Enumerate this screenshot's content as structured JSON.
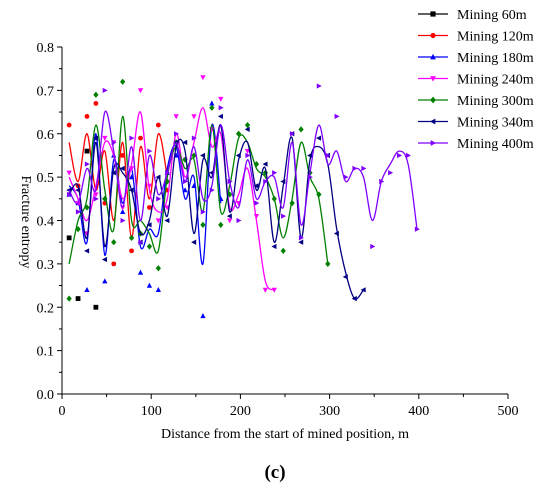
{
  "chart_data": {
    "type": "line",
    "title": "",
    "xlabel": "Distance from the start of mined position, m",
    "ylabel": "Fracture entropy",
    "xlim": [
      0,
      500
    ],
    "ylim": [
      0.0,
      0.8
    ],
    "x_ticks": [
      "0",
      "100",
      "200",
      "300",
      "400",
      "500"
    ],
    "y_ticks": [
      "0.0",
      "0.1",
      "0.2",
      "0.3",
      "0.4",
      "0.5",
      "0.6",
      "0.7",
      "0.8"
    ],
    "grid": false,
    "legend_position": "top-right",
    "series": [
      {
        "name": "Mining 60m",
        "color": "#000000",
        "marker": "square",
        "x": [
          8,
          18,
          28,
          38
        ],
        "y": [
          0.36,
          0.22,
          0.56,
          0.2
        ],
        "line_x": [],
        "line_y": []
      },
      {
        "name": "Mining 120m",
        "color": "#ff0000",
        "marker": "circle",
        "x": [
          8,
          18,
          28,
          38,
          48,
          58,
          68,
          78,
          88,
          98,
          108,
          118
        ],
        "y": [
          0.62,
          0.48,
          0.64,
          0.67,
          0.44,
          0.3,
          0.55,
          0.33,
          0.59,
          0.43,
          0.62,
          0.47
        ],
        "line_x": [
          8,
          18,
          28,
          38,
          48,
          58,
          68,
          78,
          88,
          98,
          108,
          118
        ],
        "line_y": [
          0.58,
          0.49,
          0.6,
          0.47,
          0.56,
          0.4,
          0.58,
          0.36,
          0.57,
          0.45,
          0.6,
          0.5
        ]
      },
      {
        "name": "Mining 180m",
        "color": "#0000ff",
        "marker": "triangle-up",
        "x": [
          8,
          18,
          28,
          38,
          48,
          58,
          68,
          78,
          88,
          98,
          108,
          118,
          128,
          138,
          148,
          158,
          168,
          178
        ],
        "y": [
          0.46,
          0.44,
          0.24,
          0.59,
          0.26,
          0.55,
          0.42,
          0.5,
          0.28,
          0.25,
          0.24,
          0.51,
          0.55,
          0.47,
          0.48,
          0.18,
          0.67,
          0.45
        ],
        "line_x": [
          8,
          18,
          28,
          38,
          48,
          58,
          68,
          78,
          88,
          98,
          108,
          118,
          128,
          138,
          148,
          158,
          168,
          178
        ],
        "line_y": [
          0.48,
          0.45,
          0.35,
          0.6,
          0.32,
          0.54,
          0.44,
          0.52,
          0.34,
          0.38,
          0.37,
          0.52,
          0.57,
          0.45,
          0.5,
          0.3,
          0.62,
          0.44
        ]
      },
      {
        "name": "Mining 240m",
        "color": "#ff00ff",
        "marker": "triangle-down",
        "x": [
          8,
          18,
          28,
          38,
          48,
          58,
          68,
          78,
          88,
          98,
          108,
          118,
          128,
          138,
          148,
          158,
          168,
          178,
          188,
          198,
          208,
          218,
          228,
          238
        ],
        "y": [
          0.51,
          0.44,
          0.37,
          0.46,
          0.59,
          0.58,
          0.43,
          0.52,
          0.7,
          0.48,
          0.4,
          0.43,
          0.64,
          0.54,
          0.64,
          0.73,
          0.61,
          0.68,
          0.4,
          0.44,
          0.56,
          0.41,
          0.24,
          0.24
        ],
        "line_x": [
          8,
          18,
          28,
          38,
          48,
          58,
          68,
          78,
          88,
          98,
          108,
          118,
          128,
          138,
          148,
          158,
          168,
          178,
          188,
          198,
          208,
          218,
          228,
          238
        ],
        "line_y": [
          0.5,
          0.45,
          0.4,
          0.48,
          0.58,
          0.55,
          0.45,
          0.53,
          0.65,
          0.47,
          0.42,
          0.45,
          0.6,
          0.5,
          0.58,
          0.66,
          0.57,
          0.6,
          0.43,
          0.46,
          0.52,
          0.4,
          0.26,
          0.24
        ]
      },
      {
        "name": "Mining 300m",
        "color": "#008000",
        "marker": "diamond",
        "x": [
          8,
          18,
          28,
          38,
          48,
          58,
          68,
          78,
          88,
          98,
          108,
          118,
          128,
          138,
          148,
          158,
          168,
          178,
          188,
          198,
          208,
          218,
          228,
          238,
          248,
          258,
          268,
          278,
          288,
          298
        ],
        "y": [
          0.22,
          0.38,
          0.43,
          0.69,
          0.45,
          0.35,
          0.72,
          0.36,
          0.37,
          0.34,
          0.29,
          0.49,
          0.58,
          0.54,
          0.55,
          0.39,
          0.66,
          0.39,
          0.46,
          0.6,
          0.62,
          0.53,
          0.51,
          0.45,
          0.33,
          0.44,
          0.61,
          0.51,
          0.46,
          0.3
        ],
        "line_x": [
          8,
          18,
          28,
          38,
          48,
          58,
          68,
          78,
          88,
          98,
          108,
          118,
          128,
          138,
          148,
          158,
          168,
          178,
          188,
          198,
          208,
          218,
          228,
          238,
          248,
          258,
          268,
          278,
          288,
          298
        ],
        "line_y": [
          0.3,
          0.4,
          0.45,
          0.62,
          0.47,
          0.38,
          0.64,
          0.4,
          0.4,
          0.37,
          0.33,
          0.5,
          0.57,
          0.52,
          0.54,
          0.42,
          0.62,
          0.42,
          0.48,
          0.59,
          0.58,
          0.52,
          0.5,
          0.45,
          0.36,
          0.45,
          0.58,
          0.5,
          0.45,
          0.3
        ]
      },
      {
        "name": "Mining 340m",
        "color": "#000080",
        "marker": "triangle-left",
        "x": [
          8,
          18,
          28,
          38,
          48,
          58,
          68,
          78,
          88,
          98,
          108,
          118,
          128,
          138,
          148,
          158,
          168,
          178,
          188,
          198,
          208,
          218,
          228,
          238,
          248,
          258,
          268,
          278,
          288,
          298,
          308,
          318,
          328,
          338
        ],
        "y": [
          0.47,
          0.47,
          0.33,
          0.59,
          0.31,
          0.51,
          0.52,
          0.47,
          0.35,
          0.39,
          0.5,
          0.4,
          0.58,
          0.58,
          0.35,
          0.55,
          0.51,
          0.64,
          0.41,
          0.55,
          0.61,
          0.48,
          0.53,
          0.34,
          0.49,
          0.6,
          0.35,
          0.55,
          0.59,
          0.55,
          0.37,
          0.27,
          0.22,
          0.24
        ],
        "line_x": [
          8,
          18,
          28,
          38,
          48,
          58,
          68,
          78,
          88,
          98,
          108,
          118,
          128,
          138,
          148,
          158,
          168,
          178,
          188,
          198,
          208,
          218,
          228,
          238,
          248,
          258,
          268,
          278,
          288,
          298,
          308,
          318,
          328,
          338
        ],
        "line_y": [
          0.46,
          0.48,
          0.36,
          0.58,
          0.34,
          0.52,
          0.51,
          0.47,
          0.37,
          0.4,
          0.5,
          0.41,
          0.57,
          0.56,
          0.37,
          0.54,
          0.5,
          0.62,
          0.42,
          0.54,
          0.58,
          0.47,
          0.52,
          0.35,
          0.48,
          0.59,
          0.36,
          0.54,
          0.57,
          0.53,
          0.38,
          0.28,
          0.22,
          0.24
        ]
      },
      {
        "name": "Mining 400m",
        "color": "#8000ff",
        "marker": "triangle-right",
        "x": [
          8,
          18,
          28,
          38,
          48,
          58,
          68,
          78,
          88,
          98,
          108,
          118,
          128,
          138,
          148,
          158,
          168,
          178,
          188,
          198,
          208,
          218,
          228,
          238,
          248,
          258,
          268,
          278,
          288,
          298,
          308,
          318,
          328,
          338,
          348,
          358,
          368,
          378,
          388,
          398
        ],
        "y": [
          0.46,
          0.42,
          0.53,
          0.45,
          0.7,
          0.58,
          0.4,
          0.59,
          0.35,
          0.56,
          0.45,
          0.51,
          0.6,
          0.49,
          0.59,
          0.42,
          0.47,
          0.66,
          0.49,
          0.4,
          0.55,
          0.44,
          0.49,
          0.51,
          0.41,
          0.6,
          0.36,
          0.5,
          0.71,
          0.55,
          0.64,
          0.5,
          0.52,
          0.52,
          0.34,
          0.49,
          0.51,
          0.55,
          0.55,
          0.38
        ],
        "line_x": [
          8,
          18,
          28,
          38,
          48,
          58,
          68,
          78,
          88,
          98,
          108,
          118,
          128,
          138,
          148,
          158,
          168,
          178,
          188,
          198,
          208,
          218,
          228,
          238,
          248,
          258,
          268,
          278,
          288,
          298,
          308,
          318,
          328,
          338,
          348,
          358,
          368,
          378,
          388,
          398
        ],
        "line_y": [
          0.47,
          0.44,
          0.52,
          0.47,
          0.65,
          0.56,
          0.43,
          0.57,
          0.4,
          0.55,
          0.46,
          0.51,
          0.58,
          0.49,
          0.57,
          0.45,
          0.48,
          0.62,
          0.49,
          0.43,
          0.54,
          0.45,
          0.49,
          0.5,
          0.43,
          0.58,
          0.39,
          0.51,
          0.62,
          0.53,
          0.56,
          0.49,
          0.52,
          0.5,
          0.4,
          0.49,
          0.53,
          0.56,
          0.53,
          0.38
        ]
      }
    ]
  },
  "caption": "(c)"
}
